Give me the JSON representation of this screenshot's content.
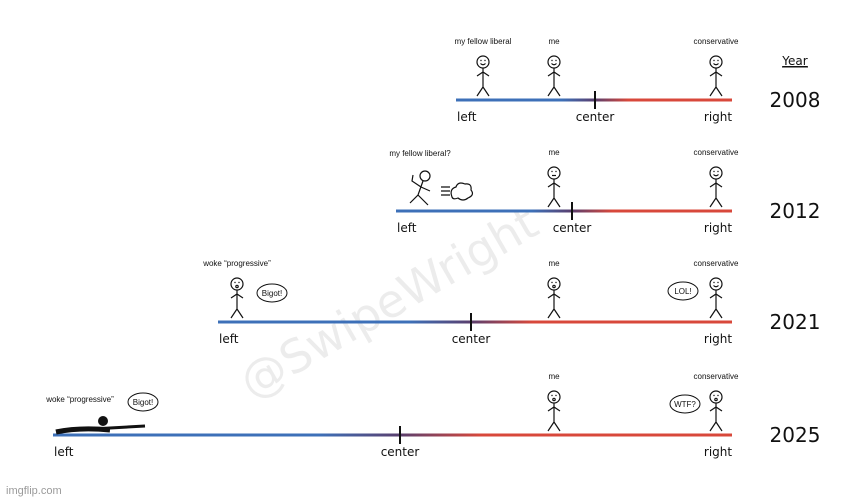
{
  "year_header": "Year",
  "axis_labels": {
    "left": "left",
    "center": "center",
    "right": "right"
  },
  "colors": {
    "left": "#3d70b8",
    "center": "#5a3f6e",
    "right": "#d8483b"
  },
  "rows": [
    {
      "year": "2008",
      "figures": [
        {
          "label": "my fellow liberal",
          "kind": "happy"
        },
        {
          "label": "me",
          "kind": "happy"
        },
        {
          "label": "conservative",
          "kind": "happy"
        }
      ]
    },
    {
      "year": "2012",
      "figures": [
        {
          "label": "my fellow liberal?",
          "kind": "running"
        },
        {
          "label": "me",
          "kind": "neutral"
        },
        {
          "label": "conservative",
          "kind": "happy"
        }
      ]
    },
    {
      "year": "2021",
      "figures": [
        {
          "label": "woke “progressive”",
          "kind": "angry",
          "speech": "Bigot!"
        },
        {
          "label": "me",
          "kind": "surprised"
        },
        {
          "label": "conservative",
          "kind": "happy",
          "speech": "LOL!"
        }
      ]
    },
    {
      "year": "2025",
      "figures": [
        {
          "label": "woke “progressive”",
          "kind": "sniper",
          "speech": "Bigot!"
        },
        {
          "label": "me",
          "kind": "surprised"
        },
        {
          "label": "conservative",
          "kind": "surprised",
          "speech": "WTF?"
        }
      ]
    }
  ],
  "watermark": "@SwipeWright",
  "footer": "imgflip.com"
}
